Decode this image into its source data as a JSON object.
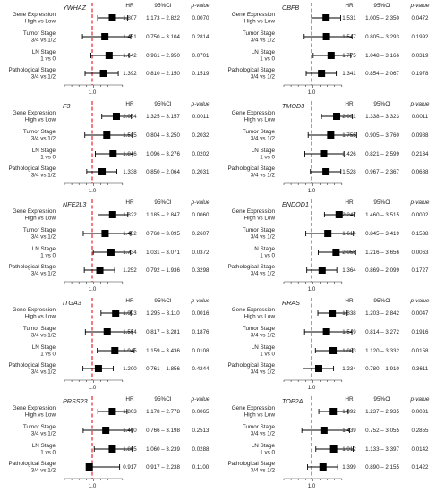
{
  "headers": {
    "hr": "HR",
    "ci": "95%CI",
    "p": "p-value"
  },
  "ref_label": "1.0",
  "row_labels": [
    [
      "Gene Expression",
      "High vs Low"
    ],
    [
      "Tumor Stage",
      "3/4 vs 1/2"
    ],
    [
      "LN Stage",
      "1 vs 0"
    ],
    [
      "Pathological Stage",
      "3/4 vs 1/2"
    ]
  ],
  "colors": {
    "ref_line": "#e8262a",
    "marker": "#000000",
    "text": "#222222"
  },
  "chart_data": [
    {
      "type": "forest",
      "gene": "YWHAZ",
      "rows": [
        {
          "hr": 1.807,
          "hr_text": "1.807",
          "lo": 1.173,
          "hi": 2.822,
          "ci_text": "1.173 – 2.822",
          "p": "0.0070"
        },
        {
          "hr": 1.451,
          "hr_text": "1.451",
          "lo": 0.75,
          "hi": 3.104,
          "ci_text": "0.750 – 3.104",
          "p": "0.2814"
        },
        {
          "hr": 1.642,
          "hr_text": "1.642",
          "lo": 0.961,
          "hi": 2.95,
          "ci_text": "0.961 – 2.950",
          "p": "0.0701"
        },
        {
          "hr": 1.392,
          "hr_text": "1.392",
          "lo": 0.81,
          "hi": 2.15,
          "ci_text": "0.810 – 2.150",
          "p": "0.1519"
        }
      ]
    },
    {
      "type": "forest",
      "gene": "CBFB",
      "rows": [
        {
          "hr": 1.531,
          "hr_text": "1.531",
          "lo": 1.005,
          "hi": 2.35,
          "ci_text": "1.005 – 2.350",
          "p": "0.0472"
        },
        {
          "hr": 1.547,
          "hr_text": "1.547",
          "lo": 0.805,
          "hi": 3.293,
          "ci_text": "0.805 – 3.293",
          "p": "0.1992"
        },
        {
          "hr": 1.775,
          "hr_text": "1.775",
          "lo": 1.048,
          "hi": 3.166,
          "ci_text": "1.048 – 3.166",
          "p": "0.0319"
        },
        {
          "hr": 1.341,
          "hr_text": "1.341",
          "lo": 0.854,
          "hi": 2.067,
          "ci_text": "0.854 – 2.067",
          "p": "0.1978"
        }
      ]
    },
    {
      "type": "forest",
      "gene": "F3",
      "rows": [
        {
          "hr": 2.034,
          "hr_text": "2.034",
          "lo": 1.325,
          "hi": 3.157,
          "ci_text": "1.325 – 3.157",
          "p": "0.0011"
        },
        {
          "hr": 1.535,
          "hr_text": "1.535",
          "lo": 0.804,
          "hi": 3.25,
          "ci_text": "0.804 – 3.250",
          "p": "0.2032"
        },
        {
          "hr": 1.846,
          "hr_text": "1.846",
          "lo": 1.096,
          "hi": 3.276,
          "ci_text": "1.096 – 3.276",
          "p": "0.0202"
        },
        {
          "hr": 1.338,
          "hr_text": "1.338",
          "lo": 0.85,
          "hi": 2.064,
          "ci_text": "0.850 – 2.064",
          "p": "0.2031"
        }
      ]
    },
    {
      "type": "forest",
      "gene": "TMOD3",
      "rows": [
        {
          "hr": 2.091,
          "hr_text": "2.091",
          "lo": 1.338,
          "hi": 3.323,
          "ci_text": "1.338 – 3.323",
          "p": "0.0011"
        },
        {
          "hr": 1.755,
          "hr_text": "1.755",
          "lo": 0.905,
          "hi": 3.76,
          "ci_text": "0.905 – 3.760",
          "p": "0.0988"
        },
        {
          "hr": 1.426,
          "hr_text": "1.426",
          "lo": 0.821,
          "hi": 2.599,
          "ci_text": "0.821 – 2.599",
          "p": "0.2134"
        },
        {
          "hr": 1.528,
          "hr_text": "1.528",
          "lo": 0.967,
          "hi": 2.367,
          "ci_text": "0.967 – 2.367",
          "p": "0.0688"
        }
      ]
    },
    {
      "type": "forest",
      "gene": "NFE2L3",
      "rows": [
        {
          "hr": 1.822,
          "hr_text": "1.822",
          "lo": 1.185,
          "hi": 2.847,
          "ci_text": "1.185 – 2.847",
          "p": "0.0060"
        },
        {
          "hr": 1.462,
          "hr_text": "1.462",
          "lo": 0.768,
          "hi": 3.095,
          "ci_text": "0.768 – 3.095",
          "p": "0.2607"
        },
        {
          "hr": 1.734,
          "hr_text": "1.734",
          "lo": 1.031,
          "hi": 3.071,
          "ci_text": "1.031 – 3.071",
          "p": "0.0372"
        },
        {
          "hr": 1.252,
          "hr_text": "1.252",
          "lo": 0.792,
          "hi": 1.936,
          "ci_text": "0.792 – 1.936",
          "p": "0.3298"
        }
      ]
    },
    {
      "type": "forest",
      "gene": "ENDOD1",
      "rows": [
        {
          "hr": 2.247,
          "hr_text": "2.247",
          "lo": 1.46,
          "hi": 3.515,
          "ci_text": "1.460 – 3.515",
          "p": "0.0002"
        },
        {
          "hr": 1.614,
          "hr_text": "1.614",
          "lo": 0.845,
          "hi": 3.419,
          "ci_text": "0.845 – 3.419",
          "p": "0.1538"
        },
        {
          "hr": 2.055,
          "hr_text": "2.055",
          "lo": 1.216,
          "hi": 3.656,
          "ci_text": "1.216 – 3.656",
          "p": "0.0063"
        },
        {
          "hr": 1.364,
          "hr_text": "1.364",
          "lo": 0.869,
          "hi": 2.099,
          "ci_text": "0.869 – 2.099",
          "p": "0.1727"
        }
      ]
    },
    {
      "type": "forest",
      "gene": "ITGA3",
      "rows": [
        {
          "hr": 1.993,
          "hr_text": "1.993",
          "lo": 1.295,
          "hi": 3.11,
          "ci_text": "1.295 – 3.110",
          "p": "0.0016"
        },
        {
          "hr": 1.554,
          "hr_text": "1.554",
          "lo": 0.817,
          "hi": 3.281,
          "ci_text": "0.817 – 3.281",
          "p": "0.1876"
        },
        {
          "hr": 1.945,
          "hr_text": "1.945",
          "lo": 1.159,
          "hi": 3.436,
          "ci_text": "1.159 – 3.436",
          "p": "0.0108"
        },
        {
          "hr": 1.2,
          "hr_text": "1.200",
          "lo": 0.761,
          "hi": 1.856,
          "ci_text": "0.761 – 1.856",
          "p": "0.4244"
        }
      ]
    },
    {
      "type": "forest",
      "gene": "RRAS",
      "rows": [
        {
          "hr": 1.838,
          "hr_text": "1.838",
          "lo": 1.203,
          "hi": 2.842,
          "ci_text": "1.203 – 2.842",
          "p": "0.0047"
        },
        {
          "hr": 1.549,
          "hr_text": "1.549",
          "lo": 0.814,
          "hi": 3.272,
          "ci_text": "0.814 – 3.272",
          "p": "0.1916"
        },
        {
          "hr": 1.883,
          "hr_text": "1.883",
          "lo": 1.12,
          "hi": 3.332,
          "ci_text": "1.120 – 3.332",
          "p": "0.0158"
        },
        {
          "hr": 1.234,
          "hr_text": "1.234",
          "lo": 0.78,
          "hi": 1.91,
          "ci_text": "0.780 – 1.910",
          "p": "0.3611"
        }
      ]
    },
    {
      "type": "forest",
      "gene": "PRSS23",
      "rows": [
        {
          "hr": 1.803,
          "hr_text": "1.803",
          "lo": 1.178,
          "hi": 2.778,
          "ci_text": "1.178 – 2.778",
          "p": "0.0065"
        },
        {
          "hr": 1.49,
          "hr_text": "1.490",
          "lo": 0.766,
          "hi": 3.198,
          "ci_text": "0.766 – 3.198",
          "p": "0.2513"
        },
        {
          "hr": 1.805,
          "hr_text": "1.805",
          "lo": 1.06,
          "hi": 3.239,
          "ci_text": "1.060 – 3.239",
          "p": "0.0288"
        },
        {
          "hr": 0.917,
          "hr_text": "0.917",
          "lo": 0.917,
          "hi": 2.238,
          "ci_text": "0.917 – 2.238",
          "p": "0.1100"
        }
      ]
    },
    {
      "type": "forest",
      "gene": "TOP2A",
      "rows": [
        {
          "hr": 1.892,
          "hr_text": "1.892",
          "lo": 1.237,
          "hi": 2.935,
          "ci_text": "1.237 – 2.935",
          "p": "0.0031"
        },
        {
          "hr": 1.439,
          "hr_text": "1.439",
          "lo": 0.752,
          "hi": 3.055,
          "ci_text": "0.752 – 3.055",
          "p": "0.2855"
        },
        {
          "hr": 1.912,
          "hr_text": "1.912",
          "lo": 1.133,
          "hi": 3.397,
          "ci_text": "1.133 – 3.397",
          "p": "0.0142"
        },
        {
          "hr": 1.399,
          "hr_text": "1.399",
          "lo": 0.89,
          "hi": 2.155,
          "ci_text": "0.890 – 2.155",
          "p": "0.1422"
        }
      ]
    }
  ]
}
